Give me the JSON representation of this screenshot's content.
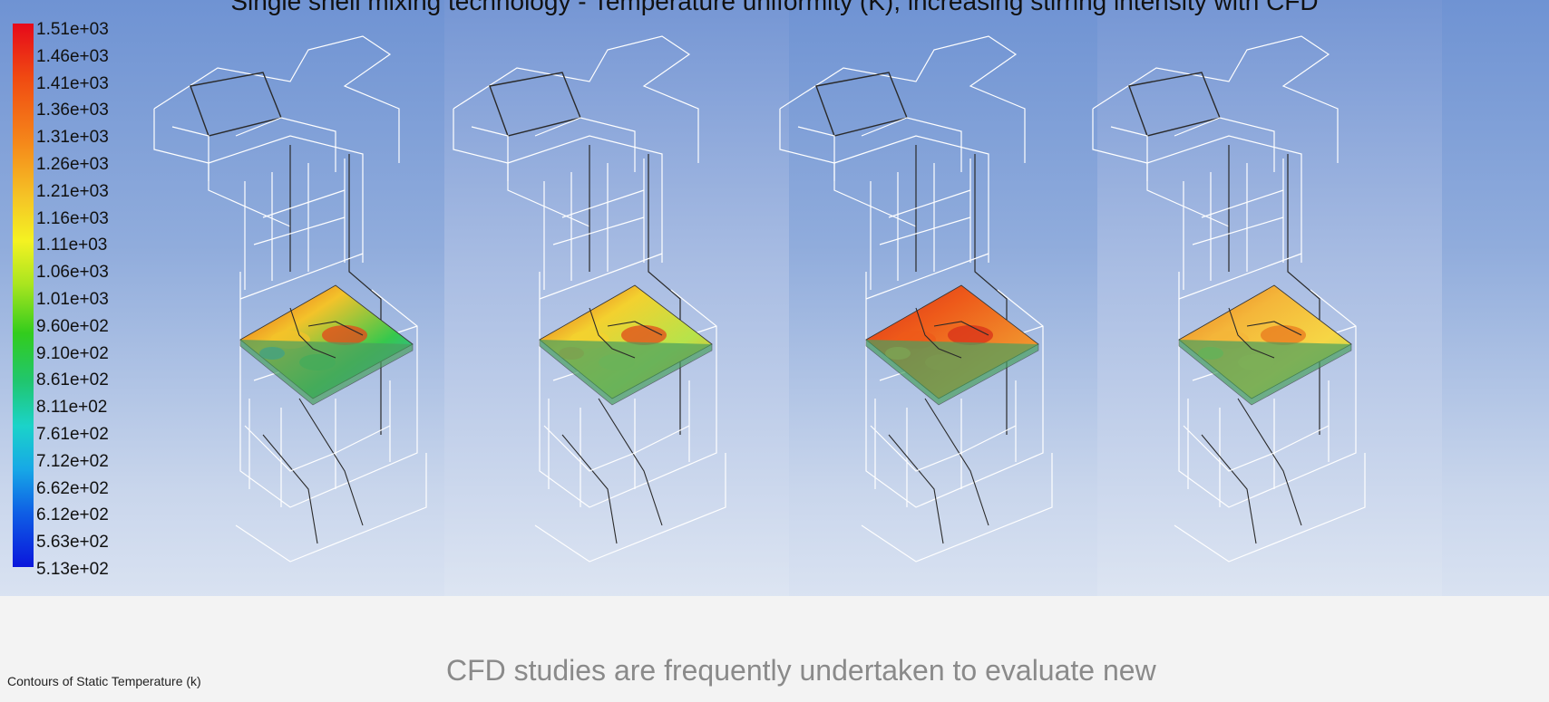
{
  "header": {
    "text": "Single shell mixing technology - Temperature uniformity (K), increasing stirring intensity with CFD"
  },
  "legend": {
    "ticks": [
      "1.51e+03",
      "1.46e+03",
      "1.41e+03",
      "1.36e+03",
      "1.31e+03",
      "1.26e+03",
      "1.21e+03",
      "1.16e+03",
      "1.11e+03",
      "1.06e+03",
      "1.01e+03",
      "9.60e+02",
      "9.10e+02",
      "8.61e+02",
      "8.11e+02",
      "7.61e+02",
      "7.12e+02",
      "6.62e+02",
      "6.12e+02",
      "5.63e+02",
      "5.13e+02"
    ]
  },
  "captions": {
    "contour_title": "Contours of Static Temperature (k)",
    "main": "CFD studies are frequently undertaken to evaluate new"
  },
  "panels": [
    {
      "slab_colors": [
        "#e5451a",
        "#f3c32a",
        "#36c84d",
        "#2aa6e0"
      ]
    },
    {
      "slab_colors": [
        "#e24a1b",
        "#f3d12f",
        "#b7e34a",
        "#f5a02a"
      ]
    },
    {
      "slab_colors": [
        "#d8301a",
        "#ee5a1a",
        "#f08a2a",
        "#f5b13a"
      ]
    },
    {
      "slab_colors": [
        "#e8781f",
        "#f4b63a",
        "#f6d645",
        "#9be04a"
      ]
    }
  ]
}
